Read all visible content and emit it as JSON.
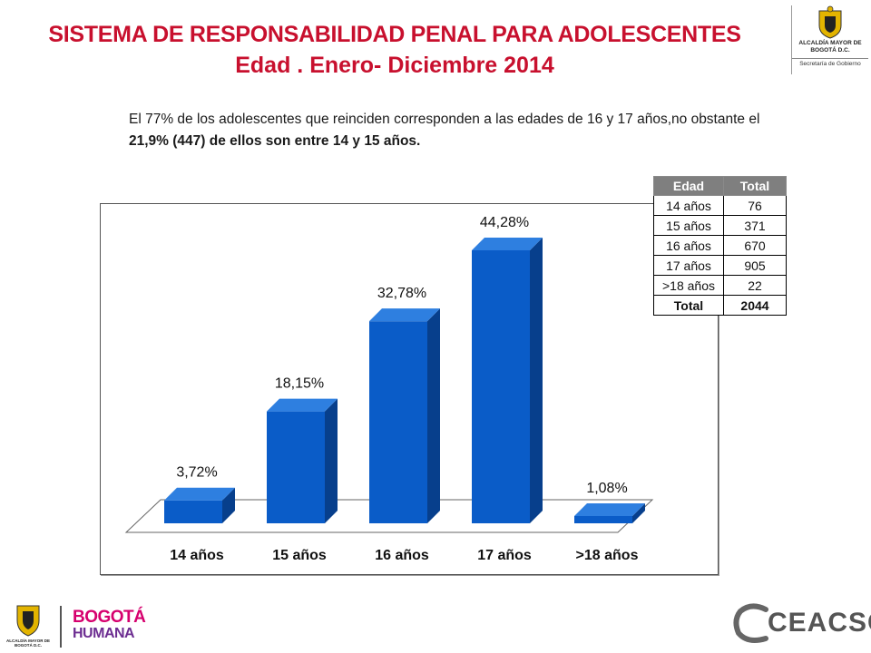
{
  "header": {
    "title_line1": "SISTEMA DE RESPONSABILIDAD PENAL PARA ADOLESCENTES",
    "title_line2": "Edad . Enero- Diciembre 2014"
  },
  "description": {
    "text_part1": "El  77% de los adolescentes que reinciden corresponden a las edades de 16 y 17 años,no obstante el ",
    "text_bold": "21,9% (447) de ellos son entre 14 y 15 años."
  },
  "logos": {
    "top_right": "ALCALDÍA MAYOR DE BOGOTÁ D.C.",
    "top_right_sub": "Secretaría de Gobierno",
    "bottom_left_alcaldia": "ALCALDÍA MAYOR DE BOGOTÁ D.C.",
    "bottom_left_line1": "BOGOTÁ",
    "bottom_left_line2": "HUMANA",
    "bottom_right": "CEACSC"
  },
  "table": {
    "headers": [
      "Edad",
      "Total"
    ],
    "rows": [
      {
        "edad": "14 años",
        "total": "76"
      },
      {
        "edad": "15 años",
        "total": "371"
      },
      {
        "edad": "16 años",
        "total": "670"
      },
      {
        "edad": "17 años",
        "total": "905"
      },
      {
        "edad": ">18 años",
        "total": "22"
      },
      {
        "edad": "Total",
        "total": "2044"
      }
    ]
  },
  "colors": {
    "title": "#c8102e",
    "bar_front": "#0a5cc8",
    "bar_side": "#073f8c",
    "bar_top": "#2e7fe0"
  },
  "chart_data": {
    "type": "bar",
    "categories": [
      "14 años",
      "15 años",
      "16 años",
      "17 años",
      ">18 años"
    ],
    "values": [
      3.72,
      18.15,
      32.78,
      44.28,
      1.08
    ],
    "data_labels": [
      "3,72%",
      "18,15%",
      "32,78%",
      "44,28%",
      "1,08%"
    ],
    "ylim": [
      0,
      50
    ],
    "grid": false,
    "three_d": true
  }
}
